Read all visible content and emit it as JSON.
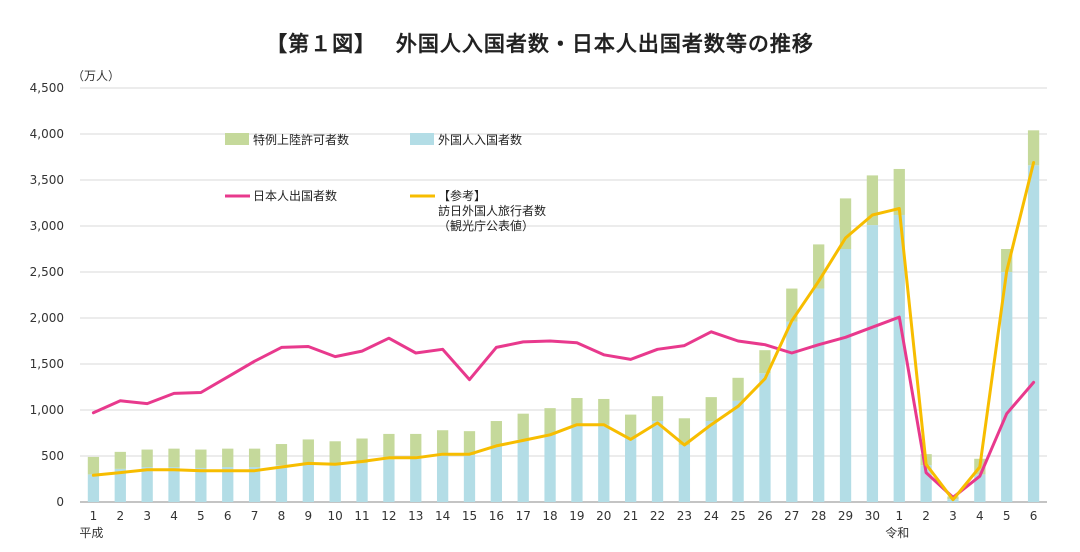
{
  "chart_data": {
    "type": "bar",
    "title": "【第１図】　 外国人入国者数・日本人出国者数等の推移",
    "unit_label": "（万人）",
    "ylim": [
      0,
      4500
    ],
    "yticks": [
      "0",
      "500",
      "1,000",
      "1,500",
      "2,000",
      "2,500",
      "3,000",
      "3,500",
      "4,000",
      "4,500"
    ],
    "ytick_values": [
      0,
      500,
      1000,
      1500,
      2000,
      2500,
      3000,
      3500,
      4000,
      4500
    ],
    "grid": true,
    "categories": [
      "1",
      "2",
      "3",
      "4",
      "5",
      "6",
      "7",
      "8",
      "9",
      "10",
      "11",
      "12",
      "13",
      "14",
      "15",
      "16",
      "17",
      "18",
      "19",
      "20",
      "21",
      "22",
      "23",
      "24",
      "25",
      "26",
      "27",
      "28",
      "29",
      "30",
      "1",
      "2",
      "3",
      "4",
      "5",
      "6"
    ],
    "era_labels": [
      {
        "text": "平成",
        "index": 0
      },
      {
        "text": "令和",
        "index": 30
      }
    ],
    "legend_placement": "top-left",
    "series": [
      {
        "name": "外国人入国者数",
        "kind": "bar-stack-bottom",
        "color": "#b3dde6",
        "values": [
          300,
          360,
          380,
          380,
          370,
          380,
          380,
          400,
          420,
          420,
          420,
          460,
          470,
          510,
          510,
          610,
          680,
          730,
          840,
          840,
          700,
          880,
          620,
          880,
          1100,
          1400,
          1960,
          2320,
          2750,
          3010,
          3120,
          400,
          30,
          300,
          2500,
          3660
        ]
      },
      {
        "name": "特例上陸許可者数",
        "kind": "bar-stack-top",
        "color": "#c5d99b",
        "values": [
          190,
          185,
          190,
          200,
          200,
          200,
          200,
          230,
          260,
          240,
          270,
          280,
          270,
          270,
          260,
          270,
          280,
          290,
          290,
          280,
          250,
          270,
          290,
          260,
          250,
          250,
          360,
          480,
          550,
          540,
          500,
          120,
          30,
          170,
          250,
          380
        ]
      },
      {
        "name": "日本人出国者数",
        "kind": "line",
        "color": "#e8398d",
        "values": [
          970,
          1100,
          1070,
          1180,
          1190,
          1360,
          1530,
          1680,
          1690,
          1580,
          1640,
          1780,
          1620,
          1660,
          1330,
          1680,
          1740,
          1750,
          1730,
          1600,
          1550,
          1660,
          1700,
          1850,
          1750,
          1710,
          1620,
          1710,
          1790,
          1900,
          2010,
          320,
          50,
          280,
          960,
          1300
        ]
      },
      {
        "name": "【参考】\n訪日外国人旅行者数\n（観光庁公表値）",
        "kind": "line",
        "color": "#f7bd00",
        "values": [
          290,
          320,
          350,
          350,
          340,
          340,
          340,
          380,
          420,
          410,
          440,
          480,
          480,
          520,
          520,
          610,
          670,
          730,
          840,
          840,
          680,
          860,
          620,
          840,
          1040,
          1340,
          1970,
          2400,
          2870,
          3120,
          3190,
          410,
          25,
          380,
          2510,
          3690
        ]
      }
    ]
  }
}
